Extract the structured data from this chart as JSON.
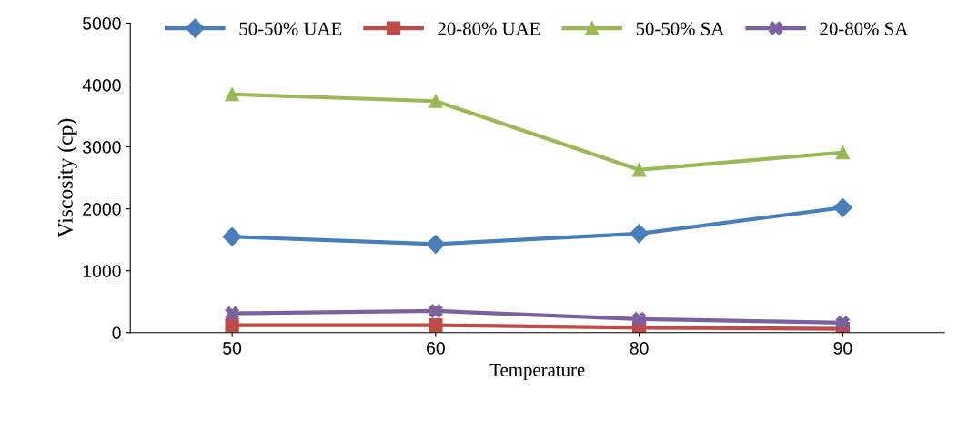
{
  "chart_data": {
    "type": "line",
    "xlabel": "Temperature",
    "ylabel": "Viscosity (cp)",
    "categories": [
      "50",
      "60",
      "80",
      "90"
    ],
    "series": [
      {
        "name": "50-50% UAE",
        "color": "#4a7ebb",
        "marker": "diamond",
        "values": [
          1550,
          1430,
          1600,
          2020
        ]
      },
      {
        "name": "20-80% UAE",
        "color": "#be4b48",
        "marker": "square",
        "values": [
          120,
          120,
          80,
          60
        ]
      },
      {
        "name": "50-50% SA",
        "color": "#98b954",
        "marker": "triangle",
        "values": [
          3850,
          3740,
          2630,
          2910
        ]
      },
      {
        "name": "20-80% SA",
        "color": "#7d60a0",
        "marker": "cross",
        "values": [
          310,
          350,
          220,
          160
        ]
      }
    ],
    "ylim": [
      0,
      5000
    ],
    "yticks": [
      0,
      1000,
      2000,
      3000,
      4000,
      5000
    ],
    "grid": false,
    "legend": "top",
    "line_style": "solid"
  }
}
